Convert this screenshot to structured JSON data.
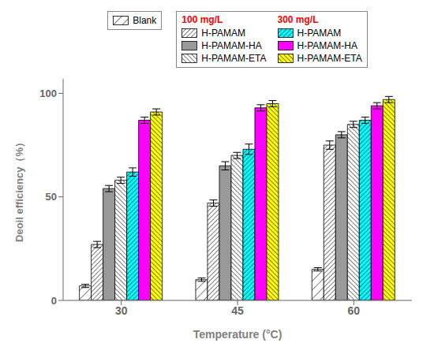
{
  "chart_data": {
    "type": "bar",
    "xlabel": "Temperature (°C)",
    "ylabel": "Deoil efficiency（%）",
    "categories": [
      "30",
      "45",
      "60"
    ],
    "series": [
      {
        "name": "Blank",
        "color": "white",
        "values": [
          7,
          10,
          15
        ],
        "errors": [
          0.8,
          0.8,
          0.8
        ]
      },
      {
        "name": "H-PAMAM",
        "color": "white",
        "values": [
          27,
          47,
          75
        ],
        "errors": [
          1.5,
          1.5,
          2.0
        ]
      },
      {
        "name": "H-PAMAM-HA",
        "color": "#999999",
        "values": [
          54,
          65,
          80
        ],
        "errors": [
          1.5,
          2.0,
          1.5
        ]
      },
      {
        "name": "H-PAMAM-ETA",
        "color": "white",
        "values": [
          58,
          70,
          85
        ],
        "errors": [
          1.5,
          1.5,
          1.5
        ]
      },
      {
        "name": "H-PAMAM",
        "color": "cyan",
        "values": [
          62,
          73,
          87
        ],
        "errors": [
          2.0,
          2.5,
          1.5
        ]
      },
      {
        "name": "H-PAMAM-HA",
        "color": "magenta",
        "values": [
          87,
          93,
          94
        ],
        "errors": [
          1.5,
          1.5,
          1.5
        ]
      },
      {
        "name": "H-PAMAM-ETA",
        "color": "yellow",
        "values": [
          91,
          95,
          97
        ],
        "errors": [
          1.5,
          1.5,
          1.5
        ]
      }
    ],
    "annotations": [
      {
        "text": "100 mg/L",
        "color": "red"
      },
      {
        "text": "300 mg/L",
        "color": "red"
      }
    ],
    "ylim": [
      0,
      107
    ],
    "yticks": [
      0,
      50,
      100
    ],
    "grid": false,
    "legend": "top"
  }
}
